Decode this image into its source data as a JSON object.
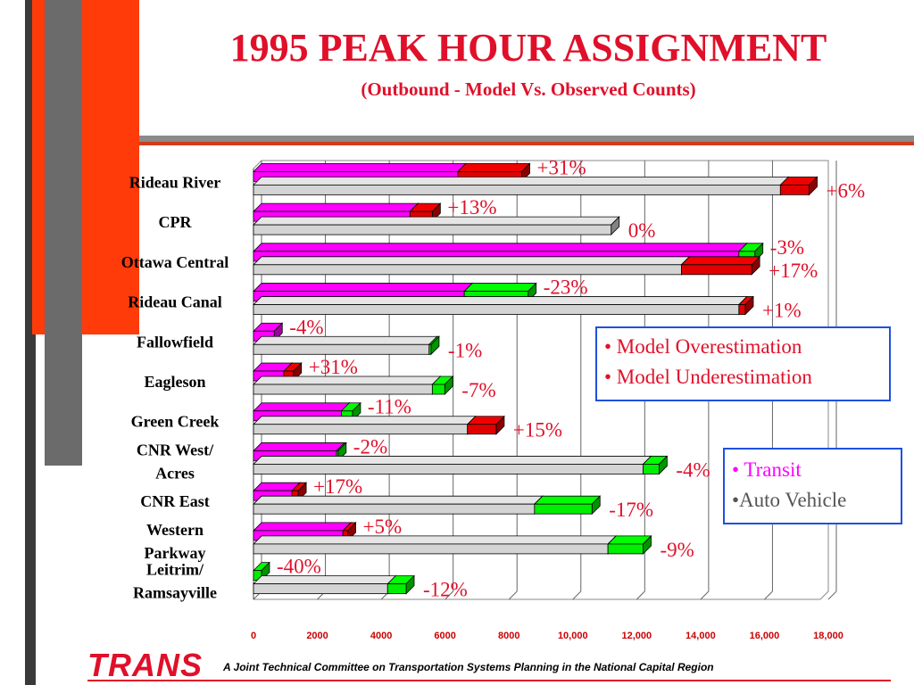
{
  "title": "1995 PEAK HOUR ASSIGNMENT",
  "subtitle": "(Outbound - Model Vs. Observed Counts)",
  "legend_model": {
    "overestimation": "• Model Overestimation",
    "underestimation": "• Model Underestimation"
  },
  "legend_mode": {
    "transit": "• Transit",
    "auto": "•Auto Vehicle"
  },
  "footer": {
    "logo": "TRANS",
    "text": "A Joint Technical Committee on Transportation Systems Planning in the National Capital Region"
  },
  "colors": {
    "transit": "#ff00ff",
    "auto": "#d4d4d4",
    "overestimation": "#e00000",
    "underestimation": "#00ee00",
    "title": "#e0102a"
  },
  "chart_data": {
    "type": "bar",
    "orientation": "horizontal",
    "style": "3d-stacked",
    "xlim": [
      0,
      18000
    ],
    "xticks": [
      "0",
      "2000",
      "4000",
      "6000",
      "8000",
      "10,000",
      "12,000",
      "14,000",
      "16,000",
      "18,000"
    ],
    "grid": true,
    "categories": [
      "Rideau River",
      "CPR",
      "Ottawa Central",
      "Rideau Canal",
      "Fallowfield",
      "Eagleson",
      "Green Creek",
      "CNR West/\nAcres",
      "CNR East",
      "Western\nParkway",
      "Leitrim/\nRamsayville"
    ],
    "series": [
      {
        "name": "Transit",
        "base": [
          6400,
          4900,
          15200,
          6600,
          650,
          950,
          2750,
          2600,
          1200,
          2800,
          0
        ],
        "diff_end": [
          8400,
          5600,
          15700,
          8600,
          650,
          1250,
          3100,
          2650,
          1400,
          2950,
          250
        ],
        "labels": [
          "+31%",
          "+13%",
          "-3%",
          "-23%",
          "-4%",
          "+31%",
          "-11%",
          "-2%",
          "+17%",
          "+5%",
          "-40%"
        ],
        "diff_type": [
          "over",
          "over",
          "under",
          "under",
          "under",
          "over",
          "under",
          "under",
          "over",
          "over",
          "under"
        ]
      },
      {
        "name": "Auto Vehicle",
        "base": [
          16500,
          11200,
          13400,
          15200,
          5500,
          5600,
          6700,
          12200,
          8800,
          11100,
          4200
        ],
        "diff_end": [
          17400,
          11200,
          15600,
          15400,
          5560,
          5990,
          7600,
          12700,
          10600,
          12200,
          4780
        ],
        "labels": [
          "+6%",
          "0%",
          "+17%",
          "+1%",
          "-1%",
          "-7%",
          "+15%",
          "-4%",
          "-17%",
          "-9%",
          "-12%"
        ],
        "diff_type": [
          "over",
          "none",
          "over",
          "over",
          "under",
          "under",
          "over",
          "under",
          "under",
          "under",
          "under"
        ]
      }
    ]
  }
}
